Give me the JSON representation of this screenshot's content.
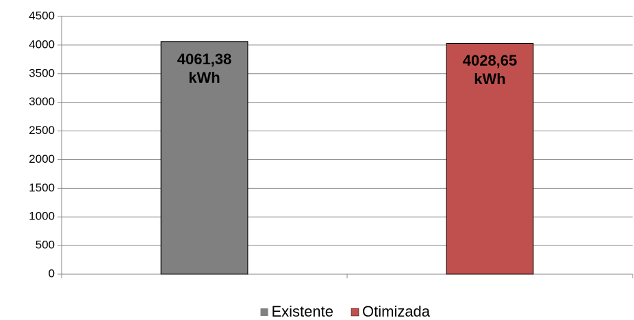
{
  "chart_data": {
    "type": "bar",
    "categories": [
      null,
      null
    ],
    "series": [
      {
        "name": "Existente",
        "color": "#808080",
        "values": [
          4061.38,
          null
        ],
        "value_labels": [
          "4061,38\nkWh",
          null
        ]
      },
      {
        "name": "Otimizada",
        "color": "#c0504d",
        "values": [
          null,
          4028.65
        ],
        "value_labels": [
          null,
          "4028,65\nkWh"
        ]
      }
    ],
    "ylim": [
      0,
      4500
    ],
    "yticks": [
      0,
      500,
      1000,
      1500,
      2000,
      2500,
      3000,
      3500,
      4000,
      4500
    ],
    "grid": true,
    "legend": "bottom"
  }
}
